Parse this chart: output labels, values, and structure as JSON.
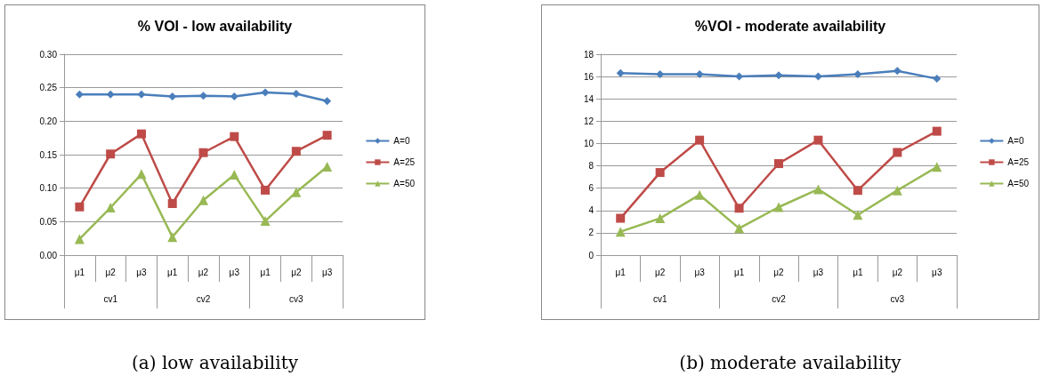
{
  "chart_data": [
    {
      "type": "line",
      "title": "% VOI - low availability",
      "subtitle": "(a) low availability",
      "categories": [
        "μ1",
        "μ2",
        "μ3",
        "μ1",
        "μ2",
        "μ3",
        "μ1",
        "μ2",
        "μ3"
      ],
      "annotations": [
        "cv1",
        "cv2",
        "cv3"
      ],
      "series": [
        {
          "name": "A=0",
          "color": "#4a7ebb",
          "marker": "diamond",
          "values": [
            0.24,
            0.24,
            0.24,
            0.237,
            0.238,
            0.237,
            0.243,
            0.241,
            0.23
          ]
        },
        {
          "name": "A=25",
          "color": "#be4b48",
          "marker": "square",
          "values": [
            0.072,
            0.151,
            0.181,
            0.077,
            0.153,
            0.177,
            0.097,
            0.155,
            0.179
          ]
        },
        {
          "name": "A=50",
          "color": "#98b954",
          "marker": "triangle",
          "values": [
            0.024,
            0.071,
            0.121,
            0.027,
            0.082,
            0.12,
            0.051,
            0.094,
            0.132
          ]
        }
      ],
      "ylim": [
        0,
        0.3
      ],
      "yticks": [
        {
          "value": 0,
          "label": "0.00"
        },
        {
          "value": 0.05,
          "label": "0.05"
        },
        {
          "value": 0.1,
          "label": "0.10"
        },
        {
          "value": 0.15,
          "label": "0.15"
        },
        {
          "value": 0.2,
          "label": "0.20"
        },
        {
          "value": 0.25,
          "label": "0.25"
        },
        {
          "value": 0.3,
          "label": "0.30"
        }
      ],
      "grid": "y",
      "legend": "right"
    },
    {
      "type": "line",
      "title": "%VOI - moderate availability",
      "subtitle": "(b) moderate availability",
      "categories": [
        "μ1",
        "μ2",
        "μ3",
        "μ1",
        "μ2",
        "μ3",
        "μ1",
        "μ2",
        "μ3"
      ],
      "annotations": [
        "cv1",
        "cv2",
        "cv3"
      ],
      "series": [
        {
          "name": "A=0",
          "color": "#4a7ebb",
          "marker": "diamond",
          "values": [
            16.3,
            16.2,
            16.2,
            16.0,
            16.1,
            16.0,
            16.2,
            16.5,
            15.8
          ]
        },
        {
          "name": "A=25",
          "color": "#be4b48",
          "marker": "square",
          "values": [
            3.3,
            7.4,
            10.3,
            4.2,
            8.2,
            10.3,
            5.8,
            9.2,
            11.1
          ]
        },
        {
          "name": "A=50",
          "color": "#98b954",
          "marker": "triangle",
          "values": [
            2.1,
            3.3,
            5.4,
            2.4,
            4.3,
            5.9,
            3.6,
            5.8,
            7.9
          ]
        }
      ],
      "ylim": [
        0,
        18
      ],
      "yticks": [
        0,
        2,
        4,
        6,
        8,
        10,
        12,
        14,
        16,
        18
      ],
      "grid": "y",
      "legend": "right"
    }
  ]
}
